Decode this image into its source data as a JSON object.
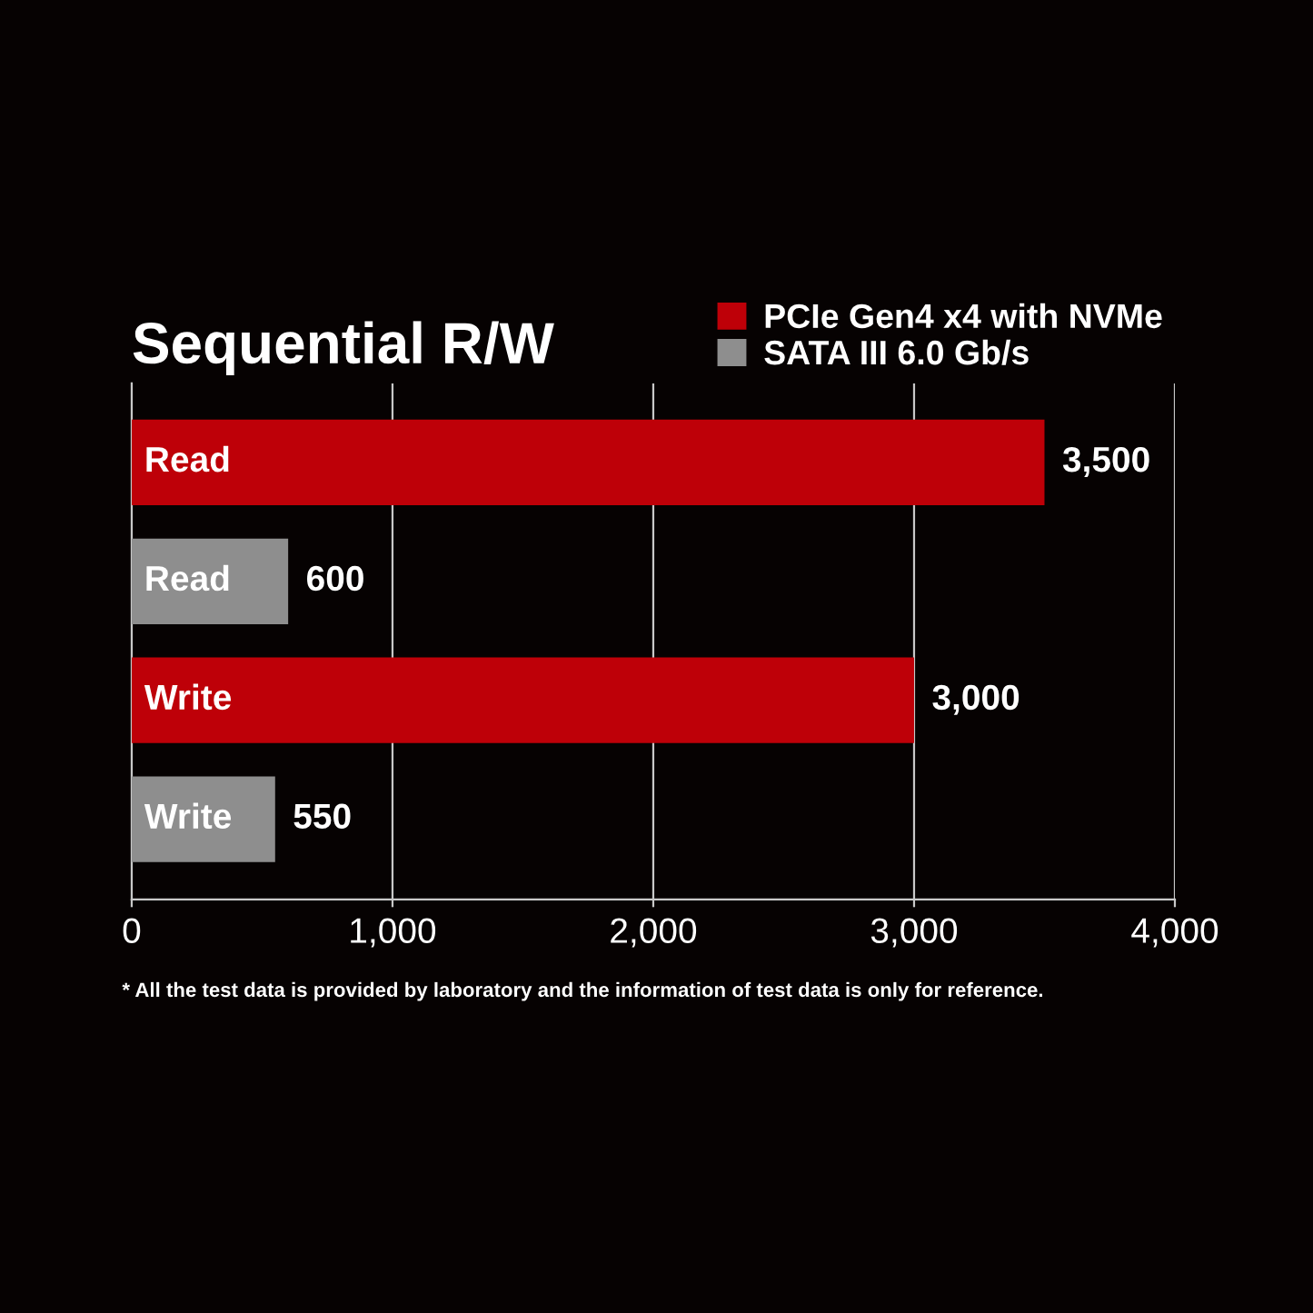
{
  "chart_data": {
    "type": "bar",
    "orientation": "horizontal",
    "title": "Sequential R/W",
    "categories": [
      "Read",
      "Read",
      "Write",
      "Write"
    ],
    "series": [
      {
        "name": "PCIe Gen4 x4 with NVMe",
        "color": "#be0008",
        "values": [
          3500,
          null,
          3000,
          null
        ],
        "value_labels": [
          "3,500",
          null,
          "3,000",
          null
        ]
      },
      {
        "name": "SATA III 6.0 Gb/s",
        "color": "#8e8e8e",
        "values": [
          null,
          600,
          null,
          550
        ],
        "value_labels": [
          null,
          "600",
          null,
          "550"
        ]
      }
    ],
    "xlim": [
      0,
      4000
    ],
    "xticks": [
      0,
      {
        "value": 1000,
        "label": "1,000"
      },
      {
        "value": 2000,
        "label": "2,000"
      },
      {
        "value": 3000,
        "label": "3,000"
      },
      {
        "value": 4000,
        "label": "4,000"
      }
    ],
    "grid": "x",
    "legend": "top right",
    "tick_labels": "x",
    "annotations": [
      "* All the test data is provided by laboratory and the information of test data is only for reference."
    ]
  }
}
